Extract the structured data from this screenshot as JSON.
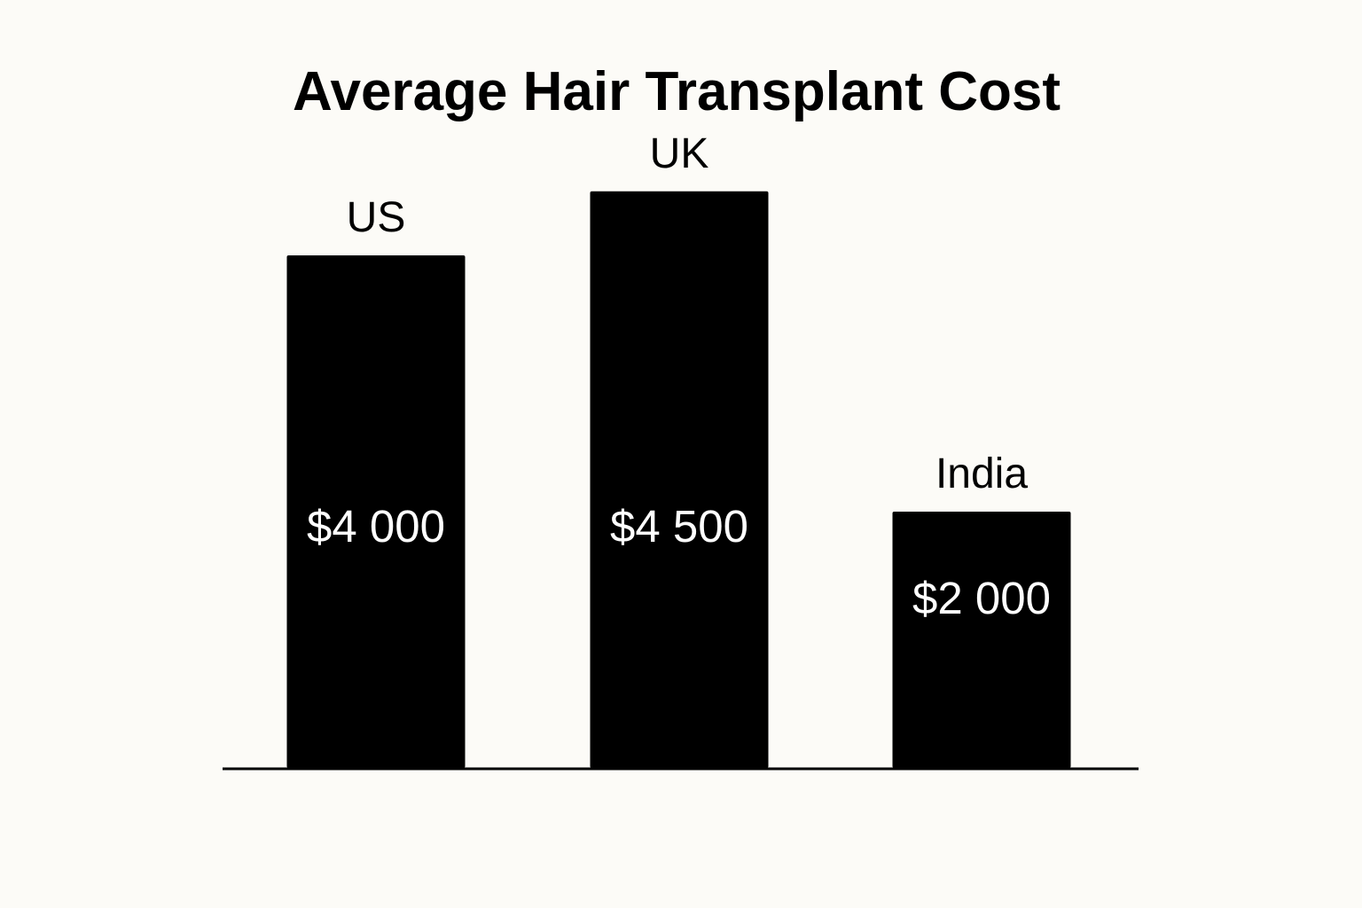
{
  "chart_data": {
    "type": "bar",
    "title": "Average Hair Transplant Cost",
    "categories": [
      "US",
      "UK",
      "India"
    ],
    "values": [
      4000,
      4500,
      2000
    ],
    "value_labels": [
      "$4 000",
      "$4 500",
      "$2 000"
    ],
    "xlabel": "",
    "ylabel": "",
    "grid": false,
    "legend": "none",
    "colors": {
      "bar": "#000000",
      "bar_label": "#ffffff",
      "text": "#000000",
      "background": "#fcfbf7"
    }
  }
}
